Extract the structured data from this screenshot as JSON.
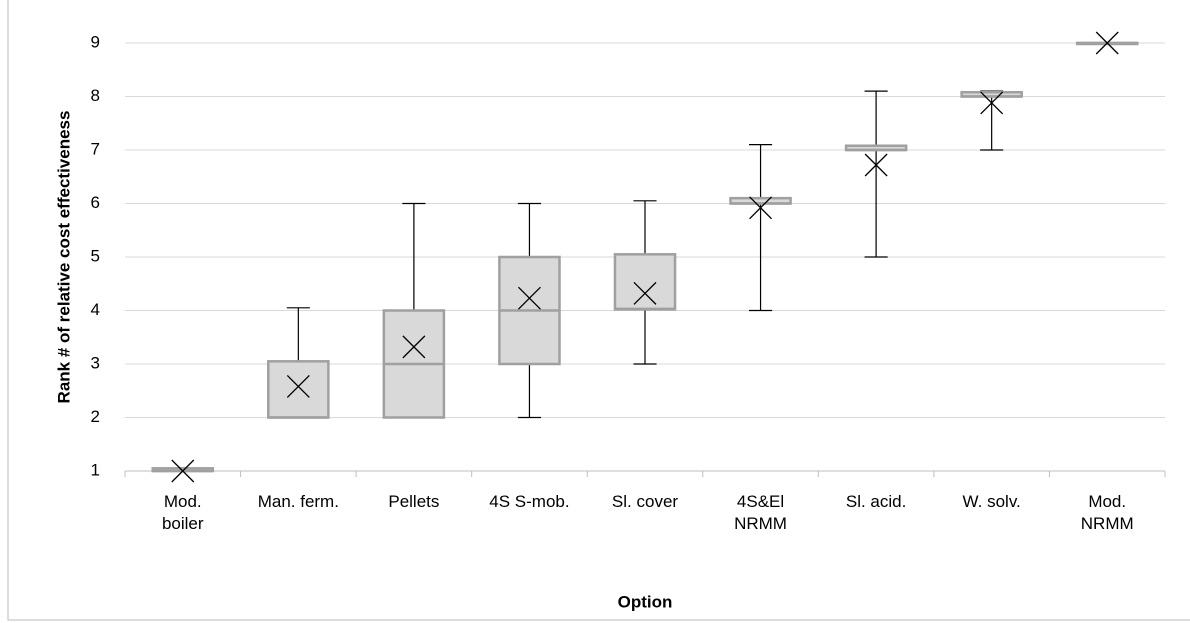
{
  "chart_data": {
    "type": "box",
    "y_label": "Rank # of relative cost effectiveness",
    "x_label": "Option",
    "categories": [
      "Mod.\nboiler",
      "Man. ferm.",
      "Pellets",
      "4S S-mob.",
      "Sl. cover",
      "4S&El\nNRMM",
      "Sl. acid.",
      "W. solv.",
      "Mod.\nNRMM"
    ],
    "min": [
      1,
      2,
      2,
      2,
      3,
      4,
      5,
      7,
      9
    ],
    "q1": [
      1,
      2,
      2,
      3,
      4.02,
      6,
      7,
      8,
      9
    ],
    "median": [
      1,
      2,
      3,
      4,
      4.03,
      6,
      7,
      8,
      9
    ],
    "q3": [
      1.05,
      3.05,
      4,
      5,
      5.05,
      6.1,
      7.08,
      8.08,
      9
    ],
    "max": [
      1,
      4.05,
      6,
      6,
      6.05,
      7.1,
      8.1,
      8.1,
      9
    ],
    "mean": [
      1,
      2.58,
      3.32,
      4.23,
      4.32,
      5.92,
      6.72,
      7.88,
      9
    ],
    "box_color": "#d9d9d9",
    "box_edge_color": "#a0a0a0",
    "whisker_color": "#000000",
    "mean_color": "#000000",
    "ylim": [
      1,
      9
    ],
    "yticks": [
      1,
      2,
      3,
      4,
      5,
      6,
      7,
      8,
      9
    ],
    "grid": true
  }
}
